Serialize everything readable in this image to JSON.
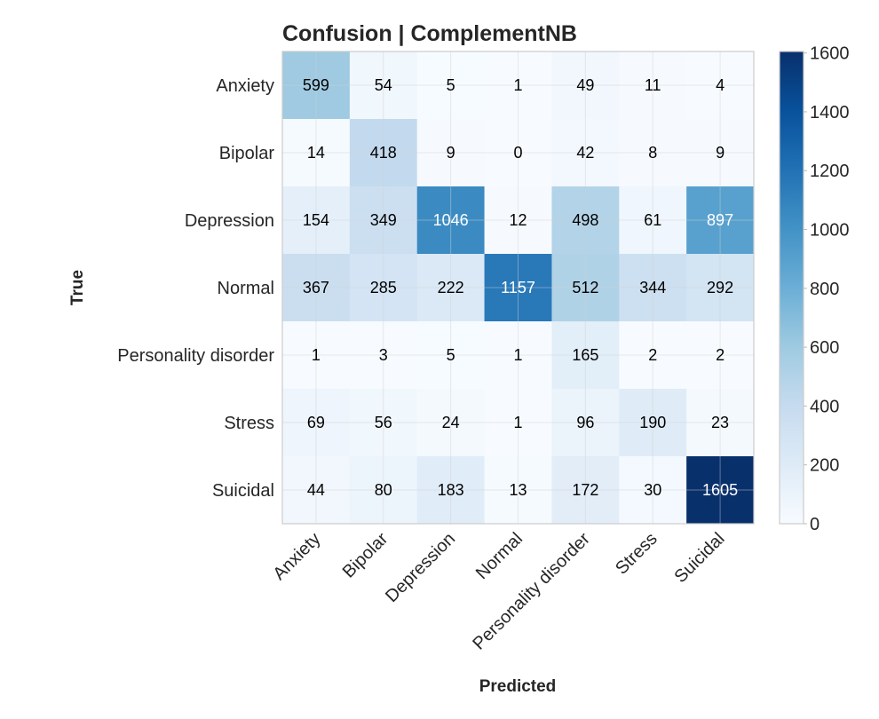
{
  "chart_data": {
    "type": "heatmap",
    "title": "Confusion | ComplementNB",
    "xlabel": "Predicted",
    "ylabel": "True",
    "x_categories": [
      "Anxiety",
      "Bipolar",
      "Depression",
      "Normal",
      "Personality disorder",
      "Stress",
      "Suicidal"
    ],
    "y_categories": [
      "Anxiety",
      "Bipolar",
      "Depression",
      "Normal",
      "Personality disorder",
      "Stress",
      "Suicidal"
    ],
    "values": [
      [
        599,
        54,
        5,
        1,
        49,
        11,
        4
      ],
      [
        14,
        418,
        9,
        0,
        42,
        8,
        9
      ],
      [
        154,
        349,
        1046,
        12,
        498,
        61,
        897
      ],
      [
        367,
        285,
        222,
        1157,
        512,
        344,
        292
      ],
      [
        1,
        3,
        5,
        1,
        165,
        2,
        2
      ],
      [
        69,
        56,
        24,
        1,
        96,
        190,
        23
      ],
      [
        44,
        80,
        183,
        13,
        172,
        30,
        1605
      ]
    ],
    "colormap": "Blues",
    "vmin": 0,
    "vmax": 1605,
    "colorbar_ticks": [
      "0",
      "200",
      "400",
      "600",
      "800",
      "1000",
      "1200",
      "1400",
      "1600"
    ],
    "grid": true
  }
}
